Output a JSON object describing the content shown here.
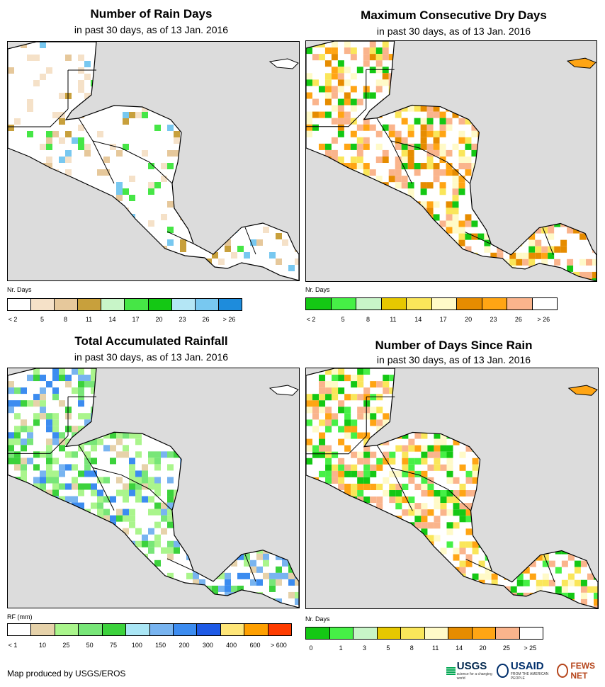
{
  "panels": [
    {
      "title": "Number of Rain Days",
      "subtitle": "in past 30 days, as of 13 Jan. 2016",
      "legend_title": "Nr. Days",
      "legend_labels": [
        "< 2",
        "5",
        "8",
        "11",
        "14",
        "17",
        "20",
        "23",
        "26",
        "> 26"
      ],
      "legend_colors": [
        "#ffffff",
        "#f5e1c8",
        "#e6c89b",
        "#c8a03c",
        "#c8f5c8",
        "#46e646",
        "#14c814",
        "#b4e6f5",
        "#78c8f0",
        "#1e8cdc"
      ],
      "dominant_color": "#ffffff",
      "patch_colors": [
        "#f5e1c8",
        "#e6c89b",
        "#f5e1c8",
        "#ffffff",
        "#46e646",
        "#c8a03c",
        "#78c8f0"
      ]
    },
    {
      "title": "Maximum Consecutive Dry Days",
      "subtitle": "in past 30 days, as of 13 Jan. 2016",
      "legend_title": "Nr. Days",
      "legend_labels": [
        "< 2",
        "5",
        "8",
        "11",
        "14",
        "17",
        "20",
        "23",
        "26",
        "> 26"
      ],
      "legend_colors": [
        "#14c814",
        "#46f046",
        "#c8f5c8",
        "#e6c800",
        "#fae65a",
        "#fffac8",
        "#e68c00",
        "#ffa514",
        "#fab48c",
        "#ffffff"
      ],
      "dominant_color": "#ffffff",
      "patch_colors": [
        "#fab48c",
        "#ffa514",
        "#fae65a",
        "#e68c00",
        "#fab48c",
        "#fffac8",
        "#14c814"
      ]
    },
    {
      "title": "Total Accumulated Rainfall",
      "subtitle": "in past 30 days, as of 13 Jan. 2016",
      "legend_title": "RF (mm)",
      "legend_labels": [
        "< 1",
        "10",
        "25",
        "50",
        "75",
        "100",
        "150",
        "200",
        "300",
        "400",
        "600",
        "> 600"
      ],
      "legend_colors": [
        "#ffffff",
        "#e6d2aa",
        "#aaf58c",
        "#78e678",
        "#3cd23c",
        "#aae6f5",
        "#78b4f0",
        "#3c8cf0",
        "#1e5ae6",
        "#ffe678",
        "#ffa000",
        "#ff3c00"
      ],
      "dominant_color": "#ffffff",
      "patch_colors": [
        "#aaf58c",
        "#78e678",
        "#3cd23c",
        "#e6d2aa",
        "#3c8cf0",
        "#aaf58c",
        "#78b4f0"
      ]
    },
    {
      "title": "Number of Days Since Rain",
      "subtitle": "in past 30 days, as of 13 Jan. 2016",
      "legend_title": "Nr. Days",
      "legend_labels": [
        "0",
        "1",
        "3",
        "5",
        "8",
        "11",
        "14",
        "20",
        "25",
        "> 25"
      ],
      "legend_colors": [
        "#14c814",
        "#46f046",
        "#c8f5c8",
        "#e6c800",
        "#fae65a",
        "#fffac8",
        "#e68c00",
        "#ffa514",
        "#fab48c",
        "#ffffff"
      ],
      "dominant_color": "#ffffff",
      "patch_colors": [
        "#fab48c",
        "#fab48c",
        "#fae65a",
        "#14c814",
        "#fffac8",
        "#ffa514",
        "#46f046"
      ]
    }
  ],
  "footer": {
    "credit": "Map produced by USGS/EROS",
    "logo_usgs": "USGS",
    "logo_usgs_tagline": "science for a changing world",
    "logo_usaid": "USAID",
    "logo_usaid_tagline": "FROM THE AMERICAN PEOPLE",
    "logo_fews": "FEWS NET"
  },
  "colors": {
    "ocean": "#dcdcdc",
    "land": "#ffffff",
    "border": "#000000"
  }
}
